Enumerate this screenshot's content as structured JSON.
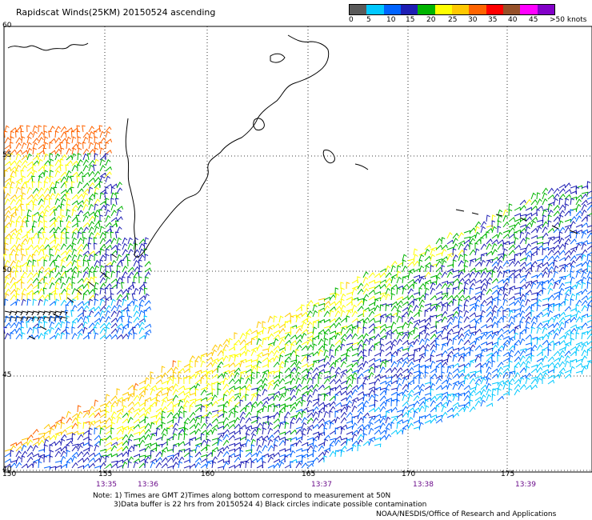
{
  "title": "Rapidscat Winds(25KM) 20150524 ascending",
  "legend": {
    "labels": [
      "0",
      "5",
      "10",
      "15",
      "20",
      "25",
      "30",
      "35",
      "40",
      "45",
      ">50 knots"
    ],
    "colors": [
      "#5a5a5a",
      "#00c8ff",
      "#0064ff",
      "#1e1eb4",
      "#00b400",
      "#ffff00",
      "#ffc800",
      "#ff6400",
      "#ff0000",
      "#965028",
      "#ff00ff",
      "#8200c8"
    ]
  },
  "lat_labels": [
    "60",
    "55",
    "50",
    "45",
    "40"
  ],
  "lon_labels": [
    "150",
    "155",
    "160",
    "165",
    "170",
    "175"
  ],
  "time_labels": [
    "13:35",
    "13:36",
    "13:37",
    "13:38",
    "13:39"
  ],
  "notes": {
    "line1": "Note: 1) Times are GMT 2)Times along bottom correspond to measurement at 50N",
    "line2": "3)Data buffer is 22 hrs from 20150524 4) Black circles indicate possible contamination"
  },
  "credit": "NOAA/NESDIS/Office of Research and Applications",
  "colors": {
    "grid": "#000000",
    "coast": "#000000",
    "time_text": "#6a0a8a"
  }
}
